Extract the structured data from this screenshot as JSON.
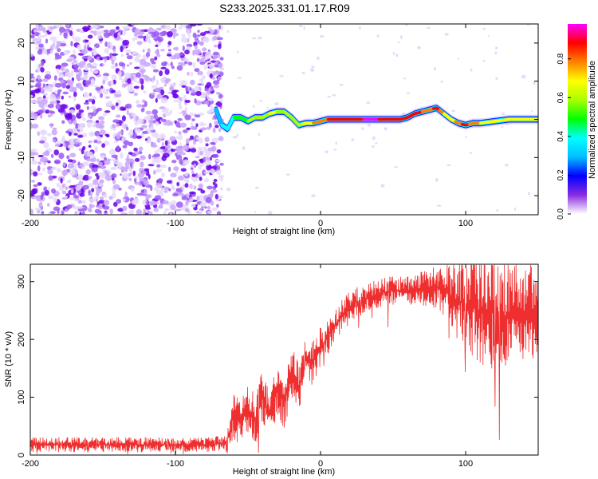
{
  "title": "S233.2025.331.01.17.R09",
  "colors": {
    "trace": "#ef2f2f",
    "scatter": "#7a3cf0",
    "axis": "#000000"
  },
  "colorbar": {
    "label": "Normalized spectral amplitude",
    "ticks": [
      {
        "v": 0.0,
        "label": "0.0"
      },
      {
        "v": 0.2,
        "label": "0.2"
      },
      {
        "v": 0.4,
        "label": "0.4"
      },
      {
        "v": 0.6,
        "label": "0.6"
      },
      {
        "v": 0.8,
        "label": "0.8"
      }
    ],
    "stops": [
      "#ffffff",
      "#8a2be2",
      "#0000ff",
      "#00bfff",
      "#00ffff",
      "#00ff00",
      "#aaff00",
      "#ffff00",
      "#ff8000",
      "#ff0000",
      "#ff00ff"
    ]
  },
  "chart_data": [
    {
      "type": "heatmap",
      "xlabel": "Height of straight line (km)",
      "ylabel": "Frequency (Hz)",
      "xlim": [
        -200,
        150
      ],
      "ylim": [
        -25,
        25
      ],
      "xticks": [
        {
          "v": -200,
          "label": "-200"
        },
        {
          "v": -100,
          "label": "-100"
        },
        {
          "v": 0,
          "label": "0"
        },
        {
          "v": 100,
          "label": "100"
        }
      ],
      "yticks": [
        {
          "v": -20,
          "label": "-20"
        },
        {
          "v": -10,
          "label": "-10"
        },
        {
          "v": 0,
          "label": "0"
        },
        {
          "v": 10,
          "label": "10"
        },
        {
          "v": 20,
          "label": "20"
        }
      ],
      "noise_region": [
        -200,
        -72
      ],
      "ridge": {
        "x": [
          -72,
          -68,
          -64,
          -60,
          -55,
          -50,
          -45,
          -40,
          -35,
          -30,
          -25,
          -20,
          -15,
          -10,
          -5,
          0,
          5,
          10,
          20,
          30,
          40,
          50,
          55,
          60,
          65,
          70,
          75,
          80,
          85,
          90,
          95,
          100,
          105,
          110,
          120,
          130,
          140,
          150
        ],
        "y": [
          2.5,
          -1.5,
          -2.5,
          0.5,
          0.5,
          -0.5,
          0.5,
          0.5,
          1.5,
          2.0,
          2.0,
          0.5,
          -1.5,
          -1.0,
          -1.0,
          -0.5,
          0.0,
          0.0,
          0.0,
          0.0,
          0.0,
          0.0,
          0.0,
          0.5,
          1.5,
          2.0,
          2.5,
          3.0,
          1.5,
          0.0,
          -1.0,
          -1.5,
          -1.0,
          -1.0,
          -0.5,
          0.0,
          0.0,
          0.0
        ],
        "amplitude": [
          0.3,
          0.35,
          0.4,
          0.45,
          0.5,
          0.55,
          0.55,
          0.6,
          0.65,
          0.65,
          0.6,
          0.55,
          0.6,
          0.7,
          0.75,
          0.8,
          0.85,
          0.88,
          0.92,
          0.95,
          0.95,
          0.93,
          0.9,
          0.9,
          0.88,
          0.85,
          0.8,
          0.9,
          0.75,
          0.7,
          0.8,
          0.9,
          0.8,
          0.75,
          0.7,
          0.72,
          0.75,
          0.7
        ]
      }
    },
    {
      "type": "line",
      "xlabel": "Height of straight line (km)",
      "ylabel": "SNR (10 * v/v)",
      "xlim": [
        -200,
        150
      ],
      "ylim": [
        0,
        330
      ],
      "xticks": [
        {
          "v": -200,
          "label": "-200"
        },
        {
          "v": -100,
          "label": "-100"
        },
        {
          "v": 0,
          "label": "0"
        },
        {
          "v": 100,
          "label": "100"
        }
      ],
      "yticks": [
        {
          "v": 0,
          "label": "0"
        },
        {
          "v": 100,
          "label": "100"
        },
        {
          "v": 200,
          "label": "200"
        },
        {
          "v": 300,
          "label": "300"
        }
      ],
      "x": [
        -200,
        -180,
        -160,
        -140,
        -120,
        -100,
        -80,
        -65,
        -60,
        -55,
        -50,
        -45,
        -40,
        -35,
        -30,
        -25,
        -20,
        -15,
        -10,
        -5,
        0,
        5,
        10,
        15,
        20,
        25,
        30,
        35,
        40,
        50,
        60,
        70,
        80,
        90,
        100,
        110,
        120,
        130,
        140,
        150
      ],
      "y": [
        18,
        18,
        18,
        18,
        18,
        18,
        18,
        20,
        70,
        55,
        80,
        60,
        100,
        70,
        120,
        90,
        140,
        120,
        165,
        160,
        190,
        205,
        225,
        240,
        255,
        265,
        270,
        275,
        280,
        285,
        285,
        288,
        290,
        275,
        260,
        250,
        245,
        240,
        245,
        250
      ],
      "spread": [
        13,
        13,
        13,
        13,
        13,
        13,
        13,
        14,
        45,
        45,
        45,
        45,
        50,
        50,
        50,
        45,
        45,
        45,
        40,
        40,
        35,
        35,
        30,
        30,
        28,
        26,
        25,
        25,
        25,
        25,
        25,
        30,
        40,
        60,
        80,
        95,
        100,
        95,
        90,
        85
      ]
    }
  ]
}
